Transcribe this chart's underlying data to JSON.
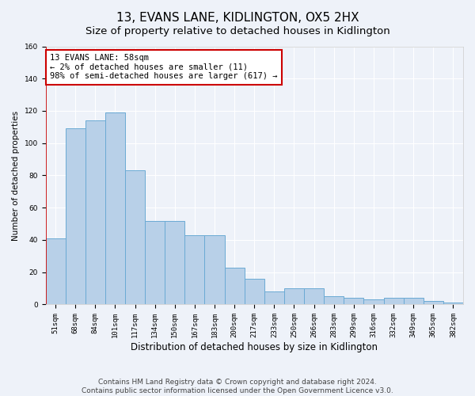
{
  "title": "13, EVANS LANE, KIDLINGTON, OX5 2HX",
  "subtitle": "Size of property relative to detached houses in Kidlington",
  "xlabel": "Distribution of detached houses by size in Kidlington",
  "ylabel": "Number of detached properties",
  "categories": [
    "51sqm",
    "68sqm",
    "84sqm",
    "101sqm",
    "117sqm",
    "134sqm",
    "150sqm",
    "167sqm",
    "183sqm",
    "200sqm",
    "217sqm",
    "233sqm",
    "250sqm",
    "266sqm",
    "283sqm",
    "299sqm",
    "316sqm",
    "332sqm",
    "349sqm",
    "365sqm",
    "382sqm"
  ],
  "values": [
    41,
    109,
    114,
    119,
    83,
    52,
    52,
    43,
    43,
    23,
    16,
    8,
    10,
    10,
    5,
    4,
    3,
    4,
    4,
    2,
    1
  ],
  "bar_color": "#b8d0e8",
  "bar_edge_color": "#6aaad4",
  "annotation_box_text": "13 EVANS LANE: 58sqm\n← 2% of detached houses are smaller (11)\n98% of semi-detached houses are larger (617) →",
  "annotation_box_color": "#ffffff",
  "annotation_box_edge_color": "#cc0000",
  "property_line_x": -0.5,
  "ylim": [
    0,
    160
  ],
  "yticks": [
    0,
    20,
    40,
    60,
    80,
    100,
    120,
    140,
    160
  ],
  "background_color": "#eef2f9",
  "footer_line1": "Contains HM Land Registry data © Crown copyright and database right 2024.",
  "footer_line2": "Contains public sector information licensed under the Open Government Licence v3.0.",
  "title_fontsize": 11,
  "subtitle_fontsize": 9.5,
  "xlabel_fontsize": 8.5,
  "ylabel_fontsize": 7.5,
  "tick_fontsize": 6.5,
  "annotation_fontsize": 7.5,
  "footer_fontsize": 6.5
}
